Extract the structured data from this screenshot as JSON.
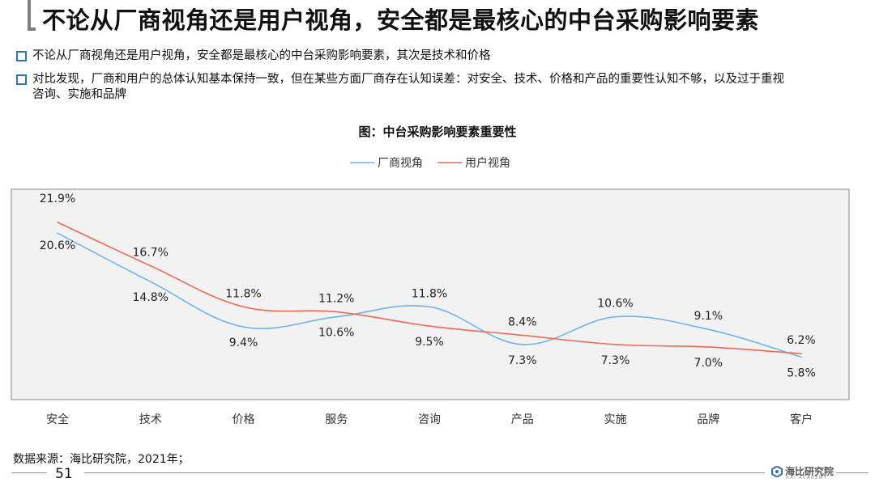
{
  "page": {
    "title": "不论从厂商视角还是用户视角，安全都是最核心的中台采购影响要素",
    "bullets": [
      "不论从厂商视角还是用户视角，安全都是最核心的中台采购影响要素，其次是技术和价格",
      "对比发现，厂商和用户的总体认知基本保持一致，但在某些方面厂商存在认知误差：对安全、技术、价格和产品的重要性认知不够，以及过于重视",
      "咨询、实施和品牌"
    ],
    "source": "数据来源：海比研究院，2021年；",
    "page_number": "51",
    "logo_text": "海比研究院",
    "logo_sub": "HAI ACADEMY"
  },
  "colors": {
    "vendor": "#6fb2ee",
    "user": "#ee6a55",
    "plot_bg": "#f2f2f2",
    "accent": "#2e75b6"
  },
  "chart_data": {
    "type": "line",
    "title": "图：中台采购影响要素重要性",
    "categories": [
      "安全",
      "技术",
      "价格",
      "服务",
      "咨询",
      "产品",
      "实施",
      "品牌",
      "客户"
    ],
    "series": [
      {
        "name": "厂商视角",
        "values": [
          20.6,
          14.8,
          9.4,
          10.6,
          11.8,
          7.3,
          10.6,
          9.1,
          5.8
        ]
      },
      {
        "name": "用户视角",
        "values": [
          21.9,
          16.7,
          11.8,
          11.2,
          9.5,
          8.4,
          7.3,
          7.0,
          6.2
        ]
      }
    ],
    "data_labels": {
      "厂商视角": [
        "20.6%",
        "14.8%",
        "9.4%",
        "10.6%",
        "11.8%",
        "7.3%",
        "10.6%",
        "9.1%",
        "5.8%"
      ],
      "用户视角": [
        "21.9%",
        "16.7%",
        "11.8%",
        "11.2%",
        "9.5%",
        "8.4%",
        "7.3%",
        "7.0%",
        "6.2%"
      ]
    },
    "smooth": true,
    "grid": false,
    "legend": "top-center"
  }
}
